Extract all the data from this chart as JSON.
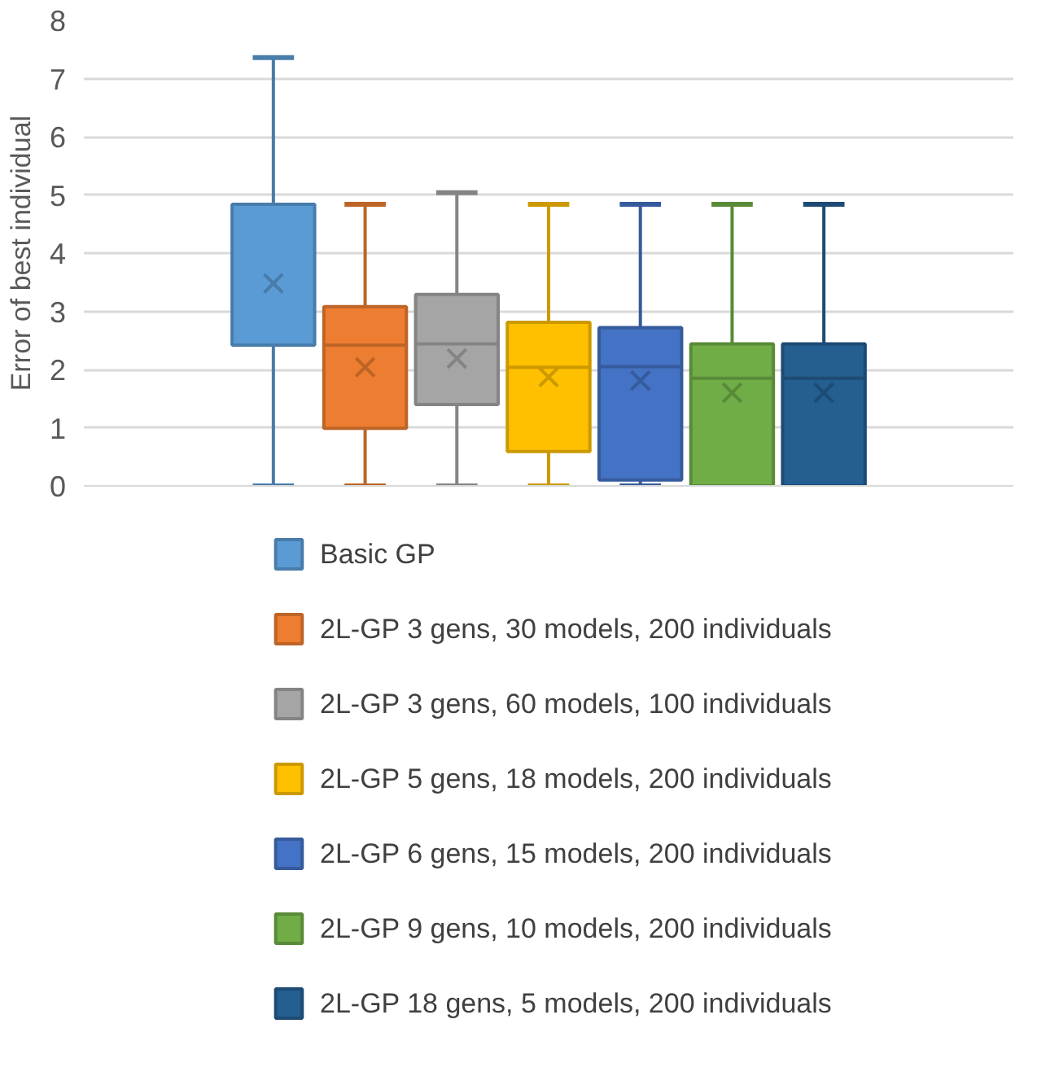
{
  "chart_data": {
    "type": "box",
    "ylabel": "Error of best individual",
    "categories": [
      null
    ],
    "ylim": [
      0,
      8
    ],
    "yticks": [
      0,
      1,
      2,
      3,
      4,
      5,
      6,
      7,
      8
    ],
    "grid": "y",
    "legend": "bottom",
    "marker": "cross",
    "series": [
      {
        "name": "Basic GP",
        "color": "#5b9bd5",
        "boxes": [
          {
            "low": 0,
            "q1": 2.42,
            "median": 2.42,
            "q3": 4.84,
            "high": 7.36,
            "mean": 3.48
          }
        ]
      },
      {
        "name": "2L-GP 3 gens, 30 models, 200 individuals",
        "color": "#ed7d31",
        "boxes": [
          {
            "low": 0,
            "q1": 0.99,
            "median": 2.42,
            "q3": 3.08,
            "high": 4.84,
            "mean": 2.04
          }
        ]
      },
      {
        "name": "2L-GP 3 gens, 60 models, 100 individuals",
        "color": "#a5a5a5",
        "boxes": [
          {
            "low": 0,
            "q1": 1.4,
            "median": 2.44,
            "q3": 3.29,
            "high": 5.04,
            "mean": 2.19
          }
        ]
      },
      {
        "name": "2L-GP 5 gens, 18 models, 200 individuals",
        "color": "#ffc000",
        "boxes": [
          {
            "low": 0,
            "q1": 0.59,
            "median": 2.04,
            "q3": 2.81,
            "high": 4.84,
            "mean": 1.87
          }
        ]
      },
      {
        "name": "2L-GP 6 gens, 15 models, 200 individuals",
        "color": "#4472c4",
        "boxes": [
          {
            "low": 0,
            "q1": 0.1,
            "median": 2.05,
            "q3": 2.72,
            "high": 4.84,
            "mean": 1.81
          }
        ]
      },
      {
        "name": "2L-GP 9 gens, 10 models, 200 individuals",
        "color": "#70ad47",
        "boxes": [
          {
            "low": 0,
            "q1": 0,
            "median": 1.85,
            "q3": 2.44,
            "high": 4.84,
            "mean": 1.6
          }
        ]
      },
      {
        "name": "2L-GP 18 gens, 5 models, 200 individuals",
        "color": "#255e91",
        "boxes": [
          {
            "low": 0,
            "q1": 0,
            "median": 1.85,
            "q3": 2.44,
            "high": 4.84,
            "mean": 1.6
          }
        ]
      }
    ]
  }
}
